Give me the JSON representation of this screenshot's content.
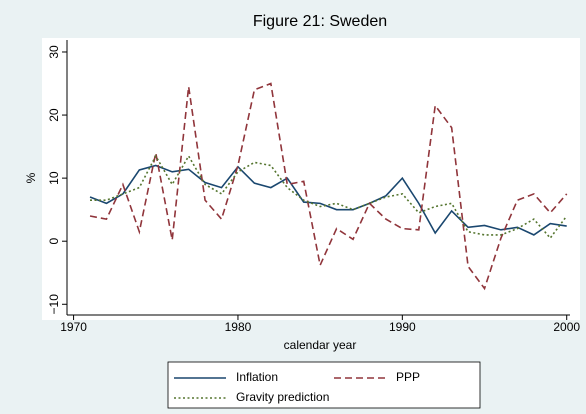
{
  "chart_data": {
    "type": "line",
    "title": "Figure 21: Sweden",
    "xlabel": "calendar year",
    "ylabel": "%",
    "x": [
      1971,
      1972,
      1973,
      1974,
      1975,
      1976,
      1977,
      1978,
      1979,
      1980,
      1981,
      1982,
      1983,
      1984,
      1985,
      1986,
      1987,
      1988,
      1989,
      1990,
      1991,
      1992,
      1993,
      1994,
      1995,
      1996,
      1997,
      1998,
      1999,
      2000
    ],
    "series": [
      {
        "name": "Inflation",
        "color": "#1a476f",
        "line_style": "solid",
        "values": [
          7.0,
          6.0,
          7.5,
          11.3,
          12.0,
          11.0,
          11.4,
          9.3,
          8.5,
          11.8,
          9.2,
          8.5,
          10.0,
          6.2,
          6.0,
          5.0,
          5.0,
          6.0,
          7.2,
          10.0,
          6.0,
          1.3,
          4.8,
          2.2,
          2.5,
          1.8,
          2.2,
          1.0,
          2.8,
          2.4
        ]
      },
      {
        "name": "PPP",
        "color": "#90353b",
        "line_style": "dashed",
        "values": [
          4.0,
          3.5,
          9.0,
          1.5,
          14.0,
          0.2,
          24.5,
          6.5,
          3.5,
          12.0,
          24.0,
          25.0,
          9.0,
          9.5,
          -3.8,
          2.0,
          0.3,
          6.0,
          3.5,
          2.0,
          1.8,
          21.5,
          18.0,
          -4.0,
          -7.5,
          0.5,
          6.5,
          7.5,
          4.5,
          7.5
        ]
      },
      {
        "name": "Gravity prediction",
        "color": "#55752f",
        "line_style": "dotted",
        "values": [
          6.5,
          6.5,
          7.5,
          8.5,
          13.5,
          9.0,
          13.5,
          9.0,
          7.5,
          11.0,
          12.5,
          12.0,
          8.5,
          6.5,
          5.5,
          6.0,
          5.0,
          6.0,
          7.0,
          7.5,
          4.5,
          5.5,
          6.0,
          1.5,
          1.0,
          1.0,
          2.0,
          3.5,
          0.5,
          4.0
        ]
      }
    ],
    "xlim": [
      1969.6,
      2000.2
    ],
    "xticks": [
      1970,
      1980,
      1990,
      2000
    ],
    "ylim": [
      -11.7,
      31.9
    ],
    "yticks": [
      {
        "value": -10,
        "label": "−10"
      },
      0,
      10,
      20,
      30
    ],
    "grid": false,
    "legend": "bottom"
  }
}
